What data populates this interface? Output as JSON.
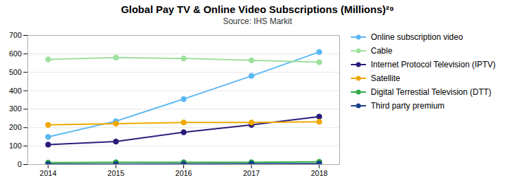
{
  "chart_data": {
    "type": "line",
    "title": "Global Pay TV & Online Video Subscriptions (Millions)²⁹",
    "subtitle": "Source: IHS Markit",
    "x": [
      2014,
      2015,
      2016,
      2017,
      2018
    ],
    "series": [
      {
        "name": "Online subscription video",
        "color": "#5BB8F5",
        "values": [
          150,
          235,
          355,
          480,
          610
        ],
        "marker": "circle"
      },
      {
        "name": "Cable",
        "color": "#9EE09E",
        "values": [
          570,
          580,
          575,
          565,
          555
        ],
        "marker": "circle"
      },
      {
        "name": "Internet Protocol Television (IPTV)",
        "color": "#2B1B7A",
        "values": [
          108,
          125,
          175,
          215,
          260
        ],
        "marker": "circle"
      },
      {
        "name": "Satellite",
        "color": "#F0A800",
        "values": [
          215,
          222,
          228,
          228,
          232
        ],
        "marker": "circle"
      },
      {
        "name": "Digital Terrestial Television (DTT)",
        "color": "#2EAA44",
        "values": [
          10,
          12,
          12,
          12,
          15
        ],
        "marker": "circle"
      },
      {
        "name": "Third party premium",
        "color": "#1B3F8C",
        "values": [
          2,
          2,
          3,
          4,
          5
        ],
        "marker": "circle"
      }
    ],
    "xlim": [
      2013.7,
      2018.3
    ],
    "xticks": [
      2014,
      2015,
      2016,
      2017,
      2018
    ],
    "ylim": [
      0,
      700
    ],
    "yticks": [
      0,
      100,
      200,
      300,
      400,
      500,
      600,
      700
    ],
    "grid": true,
    "legend": "right"
  }
}
